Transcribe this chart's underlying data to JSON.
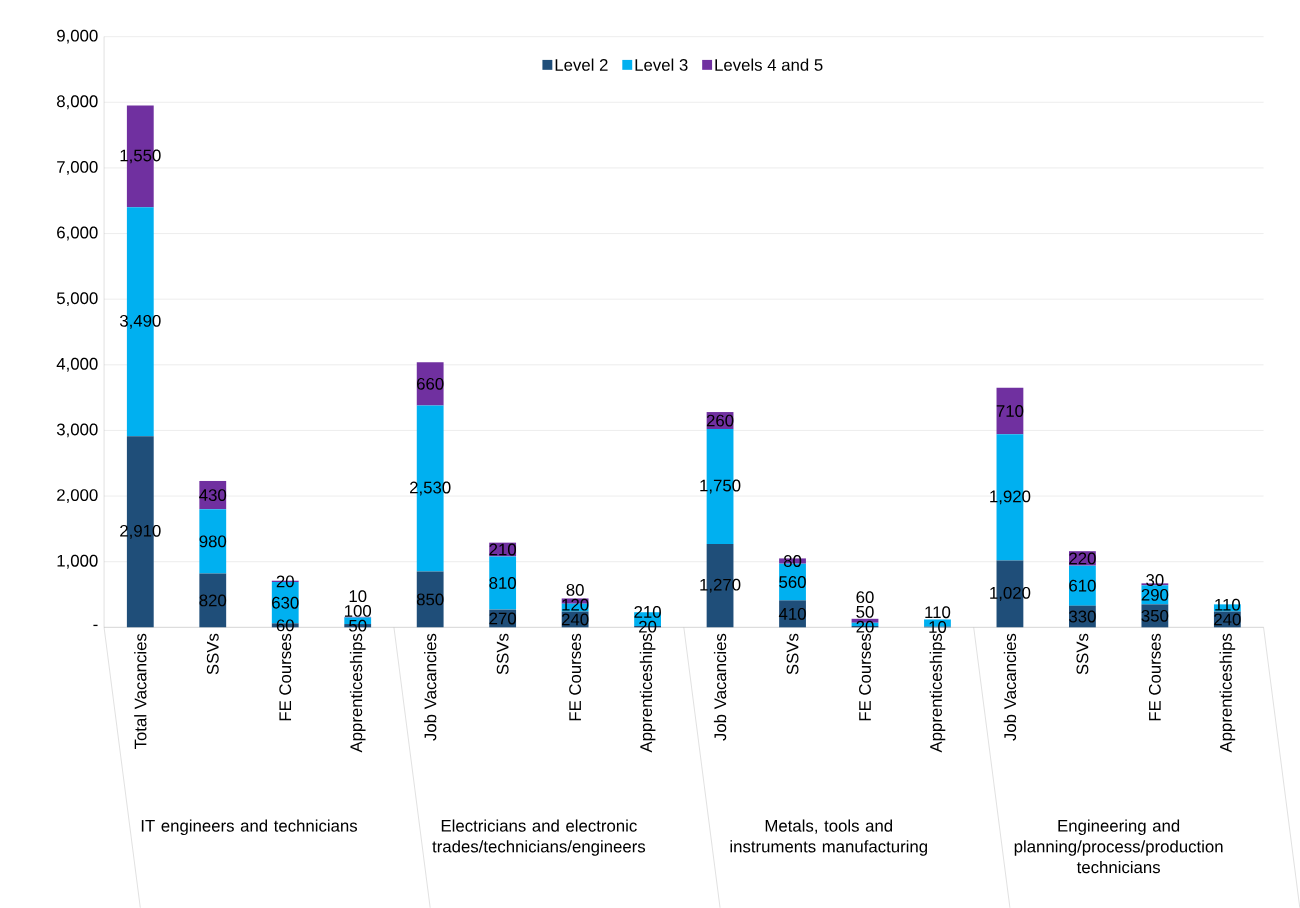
{
  "chart_data": {
    "type": "bar",
    "stacked": true,
    "categories": [
      "Total Vacancies",
      "SSVs",
      "FE Courses",
      "Apprenticeships",
      "Job Vacancies",
      "SSVs",
      "FE Courses",
      "Apprenticeships",
      "Job Vacancies",
      "SSVs",
      "FE Courses",
      "Apprenticeships",
      "Job Vacancies",
      "SSVs",
      "FE Courses",
      "Apprenticeships"
    ],
    "series": [
      {
        "name": "Level 2",
        "color": "#1f4e79",
        "values": [
          2910,
          820,
          60,
          50,
          850,
          270,
          240,
          20,
          1270,
          410,
          20,
          10,
          1020,
          330,
          350,
          240
        ],
        "value_labels": [
          "2,910",
          "820",
          "60",
          "50",
          "850",
          "270",
          "240",
          "20",
          "1,270",
          "410",
          "20",
          "10",
          "1,020",
          "330",
          "350",
          "240"
        ]
      },
      {
        "name": "Level 3",
        "color": "#00b0f0",
        "values": [
          3490,
          980,
          630,
          100,
          2530,
          810,
          120,
          210,
          1750,
          560,
          50,
          110,
          1920,
          610,
          290,
          110
        ],
        "value_labels": [
          "3,490",
          "980",
          "630",
          "100",
          "2,530",
          "810",
          "120",
          "210",
          "1,750",
          "560",
          "50",
          "110",
          "1,920",
          "610",
          "290",
          "110"
        ]
      },
      {
        "name": "Levels 4 and 5",
        "color": "#7030a0",
        "values": [
          1550,
          430,
          20,
          10,
          660,
          210,
          80,
          null,
          260,
          80,
          60,
          null,
          710,
          220,
          30,
          null
        ],
        "value_labels": [
          "1,550",
          "430",
          "20",
          "10",
          "660",
          "210",
          "80",
          null,
          "260",
          "80",
          "60",
          null,
          "710",
          "220",
          "30",
          null
        ]
      }
    ],
    "ylim": [
      0,
      9000
    ],
    "yticks": [
      {
        "value": 0,
        "label": "-"
      },
      {
        "value": 1000,
        "label": "1,000"
      },
      {
        "value": 2000,
        "label": "2,000"
      },
      {
        "value": 3000,
        "label": "3,000"
      },
      {
        "value": 4000,
        "label": "4,000"
      },
      {
        "value": 5000,
        "label": "5,000"
      },
      {
        "value": 6000,
        "label": "6,000"
      },
      {
        "value": 7000,
        "label": "7,000"
      },
      {
        "value": 8000,
        "label": "8,000"
      },
      {
        "value": 9000,
        "label": "9,000"
      }
    ],
    "grid": "y",
    "legend": "top",
    "annotations": [
      "IT engineers and technicians",
      "Electricians and electronic trades/technicians/engineers",
      "Metals, tools and instruments manufacturing",
      "Engineering and planning/process/production technicians"
    ]
  }
}
